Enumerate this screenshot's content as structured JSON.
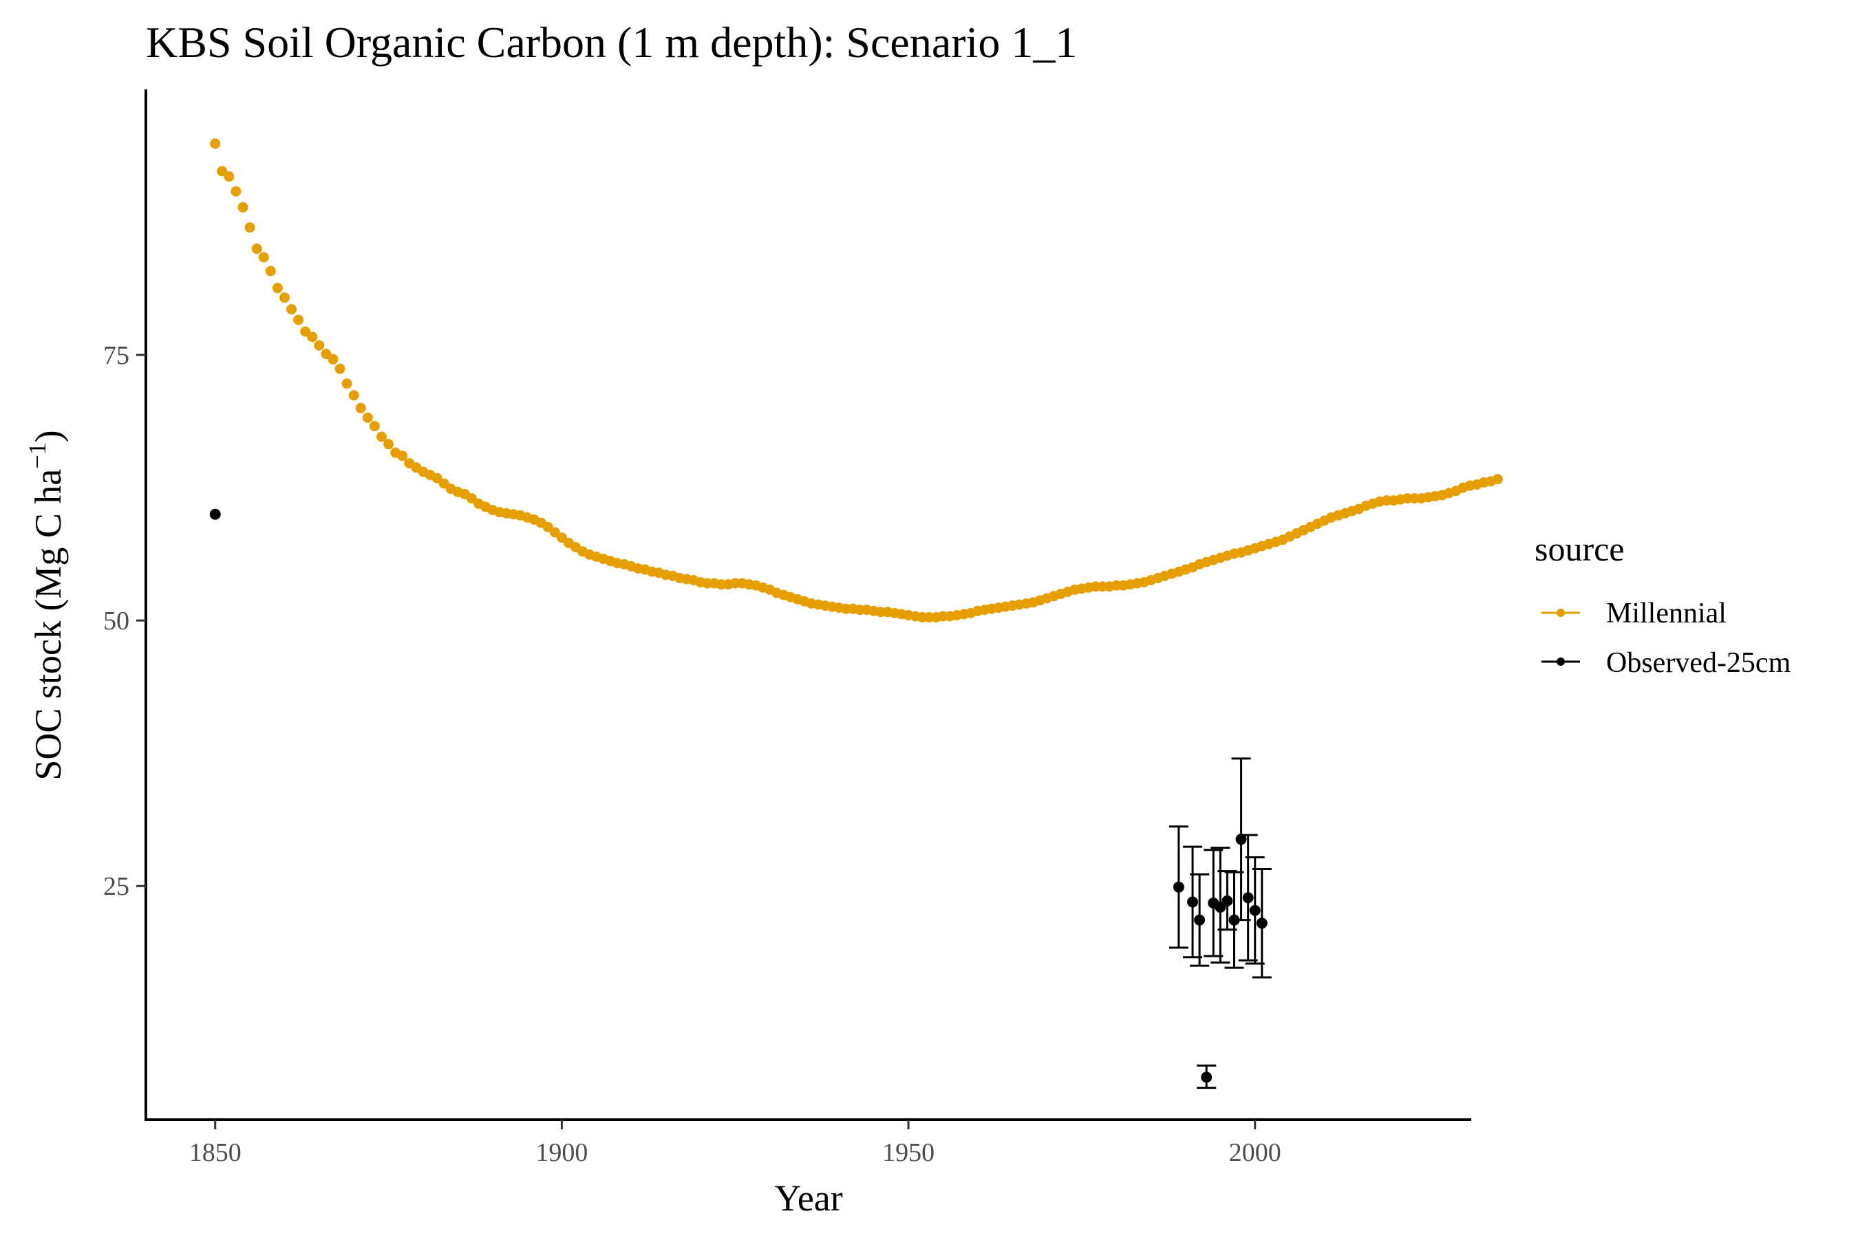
{
  "chart_data": {
    "type": "scatter",
    "title": "KBS Soil Organic Carbon (1 m depth): Scenario  1_1",
    "xlabel": "Year",
    "ylabel_main": "SOC stock (Mg C ha",
    "ylabel_sup": "−1",
    "ylabel_close": ")",
    "xlim": [
      1840,
      2031
    ],
    "ylim": [
      3,
      100
    ],
    "x_ticks": [
      1850,
      1900,
      1950,
      2000
    ],
    "y_ticks": [
      25,
      50,
      75
    ],
    "grid": false,
    "legend": {
      "title": "source",
      "position": "right",
      "entries": [
        {
          "label": "Millennial",
          "color": "#E69F00"
        },
        {
          "label": "Observed-25cm",
          "color": "#000000"
        }
      ]
    },
    "series": [
      {
        "name": "Millennial",
        "color": "#E69F00",
        "x_start": 1850,
        "x_step": 1,
        "y": [
          94.9,
          92.3,
          91.8,
          90.4,
          88.9,
          87.0,
          85.0,
          84.2,
          82.9,
          81.3,
          80.4,
          79.3,
          78.3,
          77.2,
          76.7,
          75.9,
          75.1,
          74.6,
          73.7,
          72.3,
          71.2,
          70.0,
          69.1,
          68.3,
          67.3,
          66.6,
          65.8,
          65.5,
          64.8,
          64.4,
          64.0,
          63.7,
          63.4,
          62.9,
          62.4,
          62.1,
          61.9,
          61.5,
          61.0,
          60.7,
          60.4,
          60.2,
          60.1,
          60.0,
          59.9,
          59.7,
          59.5,
          59.2,
          58.8,
          58.3,
          57.8,
          57.3,
          56.9,
          56.5,
          56.2,
          56.0,
          55.8,
          55.6,
          55.4,
          55.3,
          55.1,
          54.9,
          54.8,
          54.6,
          54.5,
          54.3,
          54.2,
          54.0,
          53.9,
          53.8,
          53.6,
          53.5,
          53.5,
          53.4,
          53.4,
          53.5,
          53.5,
          53.4,
          53.3,
          53.1,
          52.9,
          52.6,
          52.4,
          52.2,
          52.0,
          51.8,
          51.6,
          51.5,
          51.4,
          51.3,
          51.2,
          51.1,
          51.1,
          51.0,
          51.0,
          50.9,
          50.8,
          50.8,
          50.7,
          50.6,
          50.5,
          50.4,
          50.3,
          50.3,
          50.3,
          50.4,
          50.4,
          50.5,
          50.6,
          50.7,
          50.9,
          51.0,
          51.1,
          51.2,
          51.3,
          51.4,
          51.5,
          51.6,
          51.7,
          51.9,
          52.1,
          52.3,
          52.5,
          52.7,
          52.9,
          53.0,
          53.1,
          53.2,
          53.2,
          53.2,
          53.3,
          53.3,
          53.4,
          53.5,
          53.6,
          53.8,
          54.0,
          54.2,
          54.4,
          54.6,
          54.8,
          55.0,
          55.3,
          55.5,
          55.7,
          55.9,
          56.1,
          56.3,
          56.4,
          56.6,
          56.8,
          57.0,
          57.2,
          57.4,
          57.6,
          57.9,
          58.2,
          58.5,
          58.8,
          59.1,
          59.4,
          59.7,
          59.9,
          60.1,
          60.3,
          60.5,
          60.8,
          61.0,
          61.2,
          61.3,
          61.3,
          61.4,
          61.5,
          61.5,
          61.5,
          61.6,
          61.7,
          61.8,
          62.0,
          62.2,
          62.5,
          62.7,
          62.8,
          63.0,
          63.1,
          63.3
        ]
      },
      {
        "name": "Observed-25cm",
        "color": "#000000",
        "points": [
          {
            "x": 1850,
            "y": 60.0
          },
          {
            "x": 1989,
            "y": 24.9,
            "ymin": 19.2,
            "ymax": 30.6
          },
          {
            "x": 1991,
            "y": 23.5,
            "ymin": 18.3,
            "ymax": 28.7
          },
          {
            "x": 1992,
            "y": 21.8,
            "ymin": 17.5,
            "ymax": 26.1
          },
          {
            "x": 1993,
            "y": 7.0,
            "ymin": 6.0,
            "ymax": 8.1
          },
          {
            "x": 1994,
            "y": 23.4,
            "ymin": 18.4,
            "ymax": 28.4
          },
          {
            "x": 1995,
            "y": 23.0,
            "ymin": 17.8,
            "ymax": 28.6
          },
          {
            "x": 1996,
            "y": 23.6,
            "ymin": 20.9,
            "ymax": 26.4
          },
          {
            "x": 1997,
            "y": 21.8,
            "ymin": 17.3,
            "ymax": 26.3
          },
          {
            "x": 1998,
            "y": 29.4,
            "ymin": 21.8,
            "ymax": 37.0
          },
          {
            "x": 1999,
            "y": 23.9,
            "ymin": 18.0,
            "ymax": 29.8
          },
          {
            "x": 2000,
            "y": 22.7,
            "ymin": 17.7,
            "ymax": 27.7
          },
          {
            "x": 2001,
            "y": 21.5,
            "ymin": 16.4,
            "ymax": 26.6
          }
        ]
      }
    ]
  }
}
